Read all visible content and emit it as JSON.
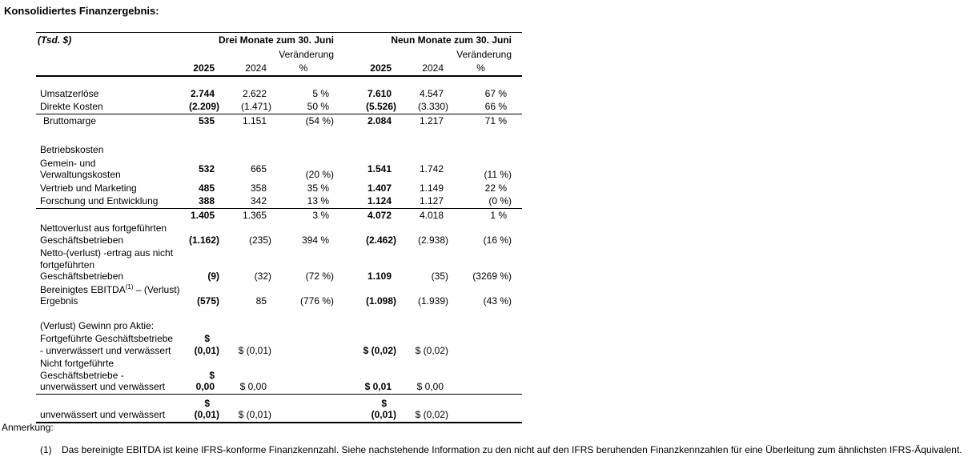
{
  "title": "Konsolidiertes Finanzergebnis:",
  "colors": {
    "text": "#000000",
    "background": "#ffffff",
    "rule": "#000000"
  },
  "table": {
    "unit_label": "(Tsd. $)",
    "groups": [
      {
        "title": "Drei Monate zum 30. Juni",
        "change": "Veränderung",
        "year_new": "2025",
        "year_old": "2024",
        "pct": "%"
      },
      {
        "title": "Neun Monate zum 30. Juni",
        "change": "Veränderung",
        "year_new": "2025",
        "year_old": "2024",
        "pct": "%"
      }
    ],
    "rows": [
      {
        "kind": "spacer",
        "h": 13
      },
      {
        "label": "Umsatzerlöse",
        "values": [
          "2.744",
          "2.622",
          "5 %",
          "7.610",
          "4.547",
          "67 %"
        ]
      },
      {
        "label": "Direkte Kosten",
        "values": [
          "(2.209)",
          "(1.471)",
          "50 %",
          "(5.526)",
          "(3.330)",
          "66 %"
        ]
      },
      {
        "label": "Bruttomarge",
        "indent": true,
        "rule_above": true,
        "values": [
          "535",
          "1.151",
          "(54 %)",
          "2.084",
          "1.217",
          "71 %"
        ]
      },
      {
        "kind": "spacer",
        "h": 20
      },
      {
        "label": "Betriebskosten",
        "values": [
          "",
          "",
          "",
          "",
          "",
          ""
        ]
      },
      {
        "label": "Gemein- und\nVerwaltungskosten",
        "nums_middle": true,
        "values": [
          "532",
          "665",
          "(20 %)",
          "1.541",
          "1.742",
          "(11 %)"
        ]
      },
      {
        "label": "Vertrieb und Marketing",
        "values": [
          "485",
          "358",
          "35 %",
          "1.407",
          "1.149",
          "22 %"
        ]
      },
      {
        "label": "Forschung und Entwicklung",
        "values": [
          "388",
          "342",
          "13 %",
          "1.124",
          "1.127",
          "(0 %)"
        ]
      },
      {
        "label": "",
        "rule_above": true,
        "values": [
          "1.405",
          "1.365",
          "3 %",
          "4.072",
          "4.018",
          "1 %"
        ]
      },
      {
        "label": "Nettoverlust aus fortgeführten\nGeschäftsbetrieben",
        "values": [
          "(1.162)",
          "(235)",
          "394 %",
          "(2.462)",
          "(2.938)",
          "(16 %)"
        ]
      },
      {
        "label": "Netto-(verlust) -ertrag aus nicht\nfortgeführten\nGeschäftsbetrieben",
        "values": [
          "(9)",
          "(32)",
          "(72 %)",
          "1.109",
          "(35)",
          "(3269 %)"
        ]
      },
      {
        "label_parts": [
          {
            "t": "Bereinigtes EBITDA"
          },
          {
            "t": "(1)",
            "sup": true
          },
          {
            "t": " – (Verlust)\nErgebnis"
          }
        ],
        "values": [
          "(575)",
          "85",
          "(776 %)",
          "(1.098)",
          "(1.939)",
          "(43 %)"
        ]
      },
      {
        "kind": "spacer",
        "h": 14
      },
      {
        "label": "(Verlust) Gewinn pro Aktie:",
        "values": [
          "",
          "",
          "",
          "",
          "",
          ""
        ]
      },
      {
        "label": "Fortgeführte Geschäftsbetriebe\n- unverwässert und verwässert",
        "values": [
          "$\n(0,01)",
          "$ (0,01)",
          "",
          "$ (0,02)",
          "$ (0,02)",
          ""
        ]
      },
      {
        "label": "Nicht fortgeführte\nGeschäftsbetriebe -\nunverwässert und verwässert",
        "values": [
          "$ 0,00",
          "$ 0,00",
          "",
          "$ 0,01",
          "$ 0,00",
          ""
        ]
      },
      {
        "label": "unverwässert und verwässert",
        "rule_above": true,
        "pad_top": 4,
        "values": [
          "$\n(0,01)",
          "$ (0,01)",
          "",
          "$\n(0,01)",
          "$ (0,02)",
          ""
        ]
      }
    ]
  },
  "note": {
    "label": "Anmerkung:",
    "items": [
      {
        "num": "(1)",
        "text": "Das bereinigte EBITDA ist keine IFRS-konforme Finanzkennzahl. Siehe nachstehende Information zu den nicht auf den IFRS beruhenden Finanzkennzahlen für eine Überleitung zum ähnlichsten IFRS-Äquivalent."
      }
    ]
  }
}
